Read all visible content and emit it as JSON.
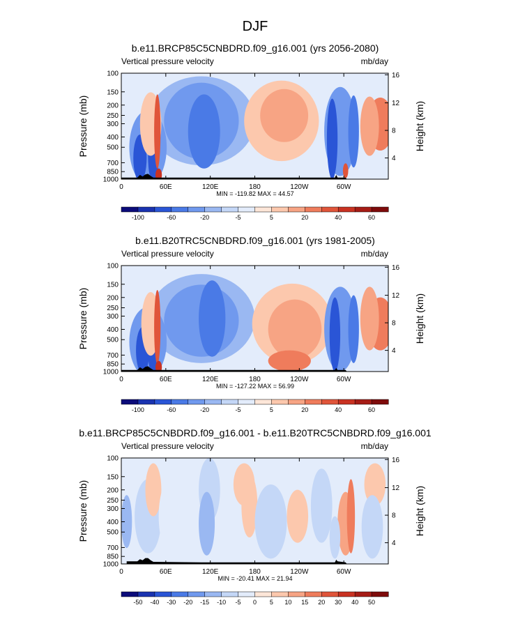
{
  "figure": {
    "title": "DJF"
  },
  "chart_data": [
    {
      "type": "heatmap",
      "title": "b.e11.BRCP85C5CNBDRD.f09_g16.001 (yrs 2056-2080)",
      "left_label": "Vertical pressure velocity",
      "right_label": "mb/day",
      "ylabel": "Pressure (mb)",
      "ylabel_right": "Height (km)",
      "x_ticks": [
        "0",
        "60E",
        "120E",
        "180",
        "120W",
        "60W"
      ],
      "y_ticks": [
        "100",
        "150",
        "200",
        "250",
        "300",
        "400",
        "500",
        "700",
        "850",
        "1000"
      ],
      "y_right_ticks": [
        "16",
        "12",
        "8",
        "4"
      ],
      "stats": "MIN = -119.82  MAX =  44.57",
      "colorbar": {
        "levels": [
          "-100",
          "-60",
          "-20",
          "-5",
          "5",
          "20",
          "40",
          "60"
        ],
        "colors": [
          "#0c0c7a",
          "#1a33b0",
          "#2a55d6",
          "#4a7ae6",
          "#7099ee",
          "#9ab8f2",
          "#c4d7f7",
          "#e3ecfb",
          "#fde6d8",
          "#fcc8ad",
          "#f7a484",
          "#ef7c5c",
          "#e0553a",
          "#c93222",
          "#a61c16",
          "#7e0b0b"
        ]
      }
    },
    {
      "type": "heatmap",
      "title": "b.e11.B20TRC5CNBDRD.f09_g16.001 (yrs 1981-2005)",
      "left_label": "Vertical pressure velocity",
      "right_label": "mb/day",
      "ylabel": "Pressure (mb)",
      "ylabel_right": "Height (km)",
      "x_ticks": [
        "0",
        "60E",
        "120E",
        "180",
        "120W",
        "60W"
      ],
      "y_ticks": [
        "100",
        "150",
        "200",
        "250",
        "300",
        "400",
        "500",
        "700",
        "850",
        "1000"
      ],
      "y_right_ticks": [
        "16",
        "12",
        "8",
        "4"
      ],
      "stats": "MIN = -127.22  MAX =  56.99",
      "colorbar": {
        "levels": [
          "-100",
          "-60",
          "-20",
          "-5",
          "5",
          "20",
          "40",
          "60"
        ],
        "colors": [
          "#0c0c7a",
          "#1a33b0",
          "#2a55d6",
          "#4a7ae6",
          "#7099ee",
          "#9ab8f2",
          "#c4d7f7",
          "#e3ecfb",
          "#fde6d8",
          "#fcc8ad",
          "#f7a484",
          "#ef7c5c",
          "#e0553a",
          "#c93222",
          "#a61c16",
          "#7e0b0b"
        ]
      }
    },
    {
      "type": "heatmap",
      "title": "b.e11.BRCP85C5CNBDRD.f09_g16.001 - b.e11.B20TRC5CNBDRD.f09_g16.001",
      "left_label": "Vertical pressure velocity",
      "right_label": "mb/day",
      "ylabel": "Pressure (mb)",
      "ylabel_right": "Height (km)",
      "x_ticks": [
        "0",
        "60E",
        "120E",
        "180",
        "120W",
        "60W"
      ],
      "y_ticks": [
        "100",
        "150",
        "200",
        "250",
        "300",
        "400",
        "500",
        "700",
        "850",
        "1000"
      ],
      "y_right_ticks": [
        "16",
        "12",
        "8",
        "4"
      ],
      "stats": "MIN = -20.41  MAX =  21.94",
      "colorbar": {
        "levels": [
          "-50",
          "-40",
          "-30",
          "-20",
          "-15",
          "-10",
          "-5",
          "0",
          "5",
          "10",
          "15",
          "20",
          "30",
          "40",
          "50"
        ],
        "colors": [
          "#0c0c7a",
          "#1a33b0",
          "#2a55d6",
          "#4a7ae6",
          "#7099ee",
          "#9ab8f2",
          "#c4d7f7",
          "#e3ecfb",
          "#fde6d8",
          "#fcc8ad",
          "#f7a484",
          "#ef7c5c",
          "#e0553a",
          "#c93222",
          "#a61c16",
          "#7e0b0b"
        ]
      }
    }
  ]
}
